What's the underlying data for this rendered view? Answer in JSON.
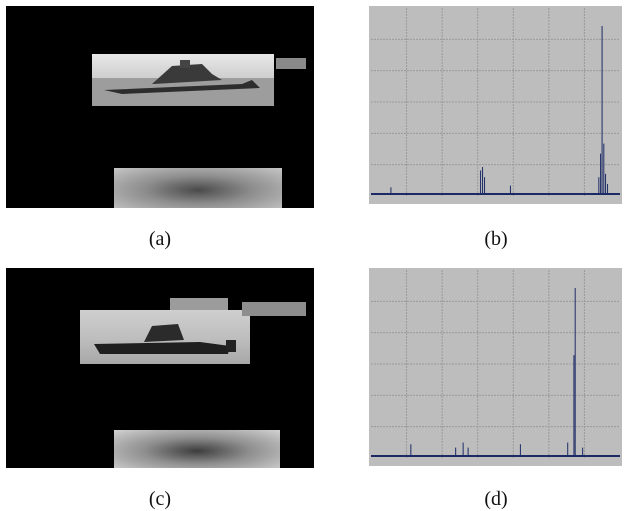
{
  "captions": {
    "a": "(a)",
    "b": "(b)",
    "c": "(c)",
    "d": "(d)"
  },
  "colors": {
    "plot_bg": "#bdbdbd",
    "grid": "#9a9a9a",
    "trace": "#1c2b66",
    "black_bg": "#000000"
  },
  "chart_data": [
    {
      "type": "line",
      "title": "",
      "xlabel": "",
      "ylabel": "",
      "grid": true,
      "xlim": [
        0,
        100
      ],
      "ylim": [
        0,
        100
      ],
      "peaks": [
        {
          "x": 8,
          "y": 4
        },
        {
          "x": 44,
          "y": 14
        },
        {
          "x": 44.8,
          "y": 16
        },
        {
          "x": 45.6,
          "y": 10
        },
        {
          "x": 56,
          "y": 5
        },
        {
          "x": 91.5,
          "y": 10
        },
        {
          "x": 92.2,
          "y": 24
        },
        {
          "x": 92.8,
          "y": 100
        },
        {
          "x": 93.5,
          "y": 30
        },
        {
          "x": 94.2,
          "y": 12
        },
        {
          "x": 95,
          "y": 6
        }
      ]
    },
    {
      "type": "line",
      "title": "",
      "xlabel": "",
      "ylabel": "",
      "grid": true,
      "xlim": [
        0,
        100
      ],
      "ylim": [
        0,
        100
      ],
      "peaks": [
        {
          "x": 16,
          "y": 7
        },
        {
          "x": 34,
          "y": 5
        },
        {
          "x": 37,
          "y": 8
        },
        {
          "x": 39,
          "y": 5
        },
        {
          "x": 60,
          "y": 7
        },
        {
          "x": 79,
          "y": 8
        },
        {
          "x": 81.5,
          "y": 60
        },
        {
          "x": 82,
          "y": 100
        },
        {
          "x": 85,
          "y": 5
        }
      ]
    }
  ]
}
